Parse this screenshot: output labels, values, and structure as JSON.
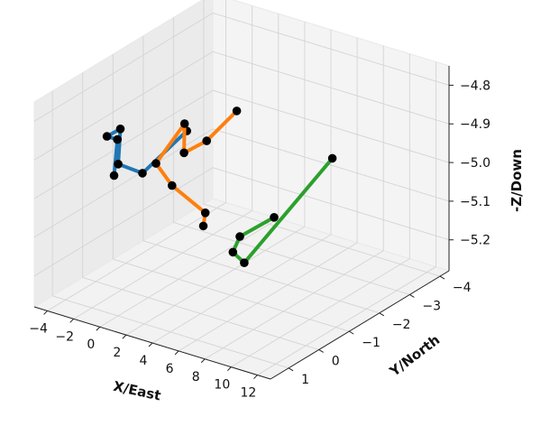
{
  "chart_data": {
    "type": "line3d",
    "title": "",
    "xlabel": "X/East",
    "ylabel": "Y/North",
    "zlabel": "-Z/Down",
    "xlim": [
      -5,
      13
    ],
    "ylim": [
      -4.3,
      1.6
    ],
    "zlim": [
      -5.28,
      -4.75
    ],
    "xticks": [
      "−4",
      "−2",
      "0",
      "2",
      "4",
      "6",
      "8",
      "10",
      "12"
    ],
    "yticks": [
      "1",
      "0",
      "−1",
      "−2",
      "−3",
      "−4"
    ],
    "zticks": [
      "−4.8",
      "−4.9",
      "−5.0",
      "−5.1",
      "−5.2"
    ],
    "grid": true,
    "series": [
      {
        "color": "#1f77b4",
        "points": [
          {
            "x": -0.3,
            "y": 1.0,
            "z": -4.92
          },
          {
            "x": -1.2,
            "y": 0.5,
            "z": -4.86
          },
          {
            "x": -2.0,
            "y": 0.5,
            "z": -4.86
          },
          {
            "x": -4.2,
            "y": -0.9,
            "z": -4.93
          },
          {
            "x": -4.6,
            "y": -1.0,
            "z": -5.03
          },
          {
            "x": -3.9,
            "y": -1.5,
            "z": -5.07
          },
          {
            "x": -2.6,
            "y": -2.4,
            "z": -4.99
          }
        ]
      },
      {
        "color": "#ff7f0e",
        "points": [
          {
            "x": 6.5,
            "y": 1.0,
            "z": -4.98
          },
          {
            "x": 5.5,
            "y": 0.5,
            "z": -4.98
          },
          {
            "x": 2.5,
            "y": 0.3,
            "z": -4.95
          },
          {
            "x": -0.8,
            "y": -0.6,
            "z": -4.97
          },
          {
            "x": -3.0,
            "y": -2.5,
            "z": -4.98
          },
          {
            "x": -3.5,
            "y": -2.7,
            "z": -5.07
          },
          {
            "x": -2.7,
            "y": -3.1,
            "z": -5.05
          },
          {
            "x": -1.1,
            "y": -3.4,
            "z": -4.97
          }
        ]
      },
      {
        "color": "#2ca02c",
        "points": [
          {
            "x": 2.9,
            "y": -2.9,
            "z": -5.18
          },
          {
            "x": 10.2,
            "y": 1.4,
            "z": -4.95
          },
          {
            "x": 7.6,
            "y": 0.5,
            "z": -5.06
          },
          {
            "x": 11.0,
            "y": 1.6,
            "z": -5.0
          },
          {
            "x": 4.8,
            "y": -4.0,
            "z": -5.06
          }
        ]
      }
    ]
  }
}
